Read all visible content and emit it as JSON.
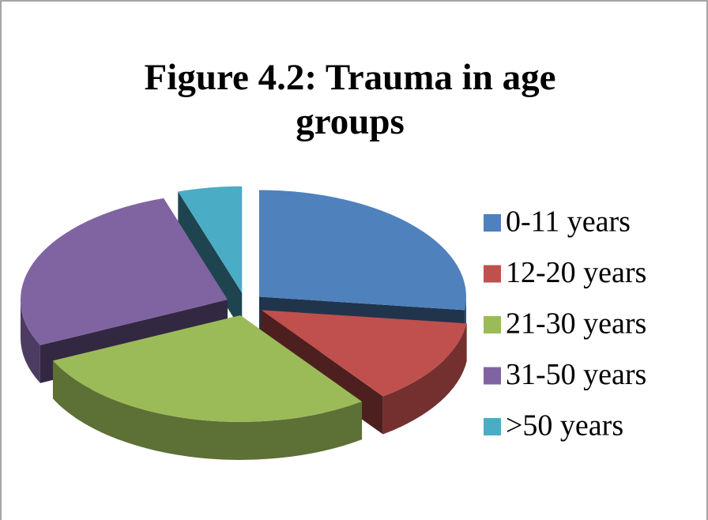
{
  "chart_data": {
    "type": "pie",
    "title": "Figure 4.2: Trauma in age groups",
    "categories": [
      "0-11 years",
      "12-20 years",
      "21-30 years",
      "31-50 years",
      ">50 years"
    ],
    "values": [
      27,
      13,
      28,
      27,
      5
    ],
    "colors": [
      "#4f81bd",
      "#c0504d",
      "#9bbb59",
      "#8064a2",
      "#4bacc6"
    ],
    "exploded": true,
    "legend": "right"
  }
}
